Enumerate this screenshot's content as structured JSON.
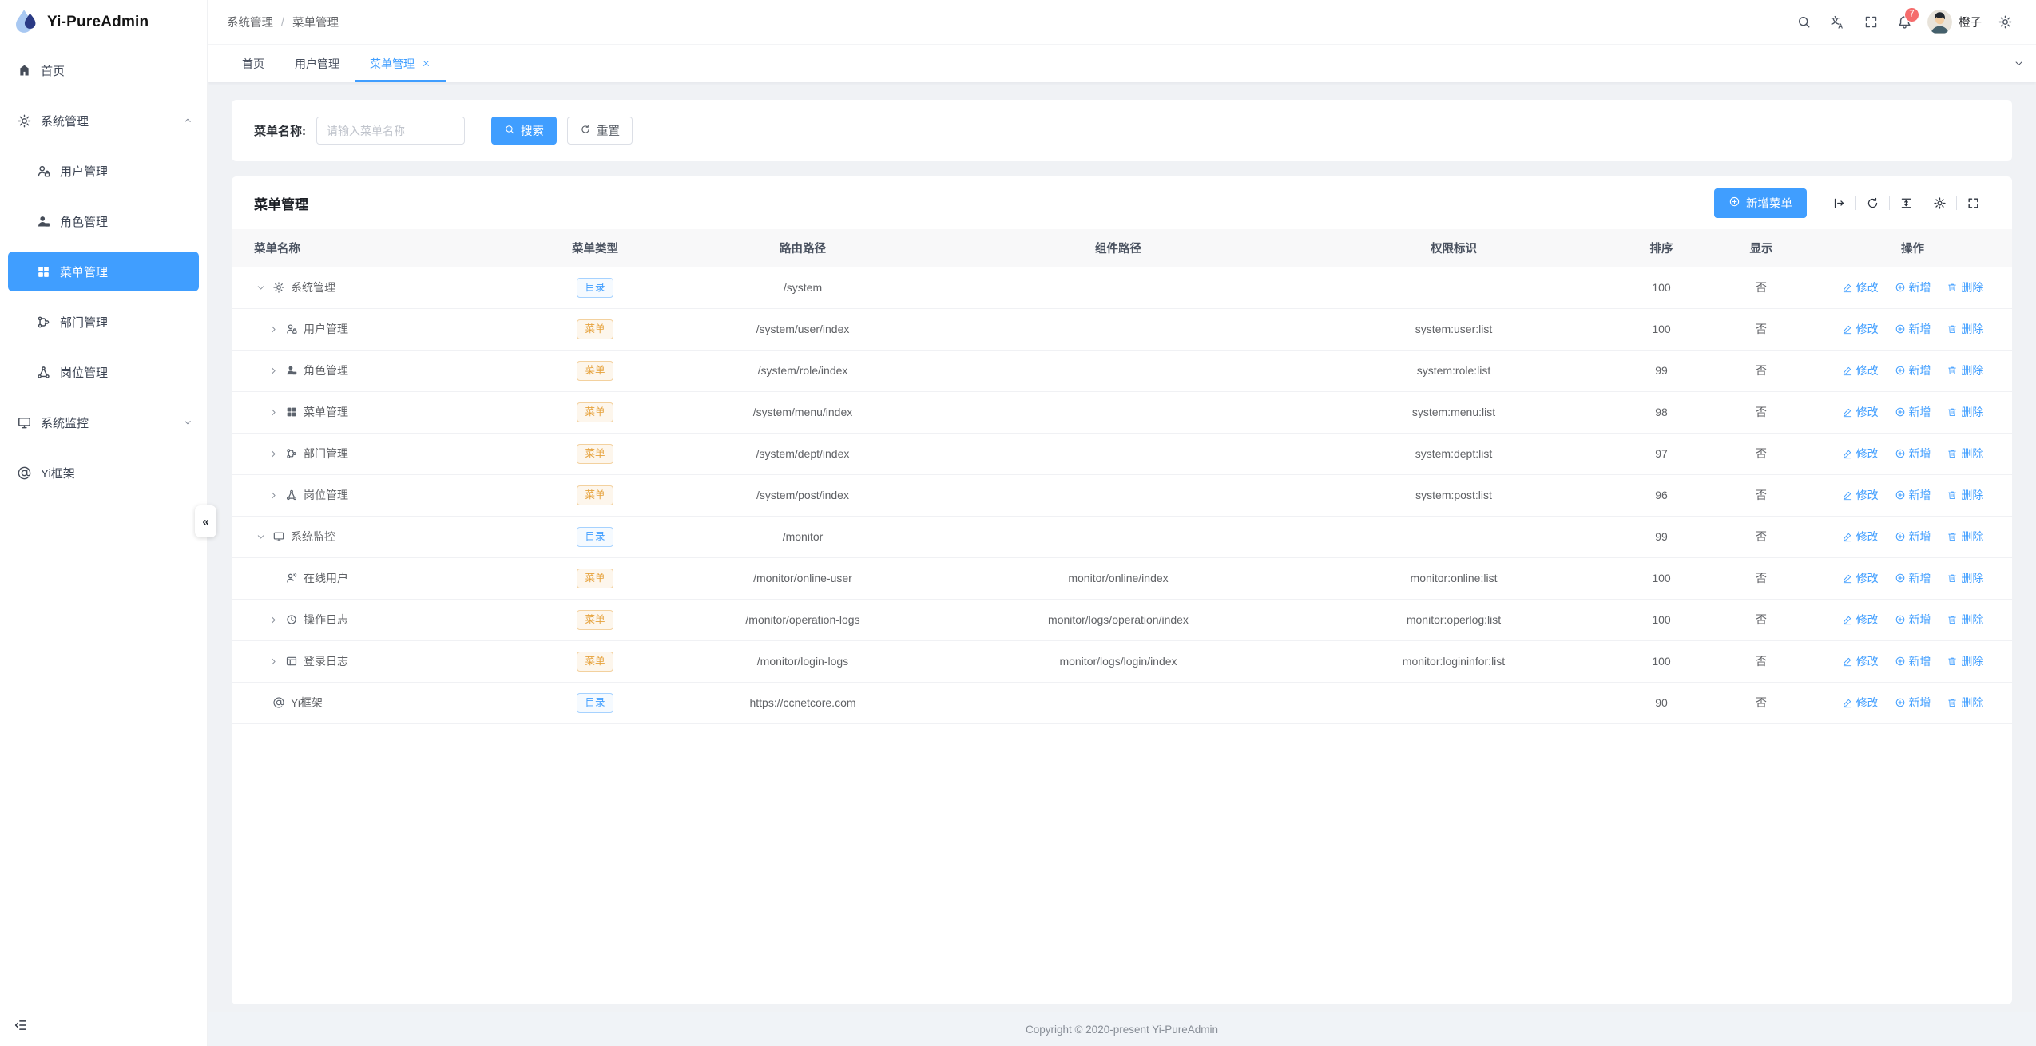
{
  "app": {
    "title": "Yi-PureAdmin"
  },
  "breadcrumb": {
    "items": [
      "系统管理",
      "菜单管理"
    ],
    "separator": "/"
  },
  "header": {
    "notification_count": "7",
    "username": "橙子",
    "icons": [
      "search-icon",
      "translate-icon",
      "fullscreen-icon",
      "bell-icon",
      "settings-icon"
    ]
  },
  "tabbar": {
    "tabs": [
      {
        "label": "首页",
        "active": false,
        "closable": false
      },
      {
        "label": "用户管理",
        "active": false,
        "closable": false
      },
      {
        "label": "菜单管理",
        "active": true,
        "closable": true
      }
    ]
  },
  "sidebar": {
    "collapse_glyph": "«",
    "items": [
      {
        "label": "首页",
        "icon": "home-icon"
      },
      {
        "label": "系统管理",
        "icon": "gear-icon",
        "expanded": true,
        "children": [
          {
            "label": "用户管理",
            "icon": "user-lock-icon"
          },
          {
            "label": "角色管理",
            "icon": "role-user-icon"
          },
          {
            "label": "菜单管理",
            "icon": "menu-grid-icon",
            "active": true
          },
          {
            "label": "部门管理",
            "icon": "dept-tree-icon"
          },
          {
            "label": "岗位管理",
            "icon": "post-nodes-icon"
          }
        ]
      },
      {
        "label": "系统监控",
        "icon": "monitor-icon",
        "expanded": false,
        "children": []
      },
      {
        "label": "Yi框架",
        "icon": "at-icon"
      }
    ]
  },
  "search_form": {
    "label": "菜单名称:",
    "placeholder": "请输入菜单名称",
    "search_button": "搜索",
    "reset_button": "重置"
  },
  "card": {
    "title": "菜单管理",
    "add_button": "新增菜单"
  },
  "table": {
    "columns": [
      "菜单名称",
      "菜单类型",
      "路由路径",
      "组件路径",
      "权限标识",
      "排序",
      "显示",
      "操作"
    ],
    "actions": {
      "edit": "修改",
      "add": "新增",
      "delete": "删除"
    },
    "toolbar_icons": [
      "collapse-all-icon",
      "refresh-icon",
      "density-icon",
      "column-settings-icon",
      "fullscreen-icon"
    ],
    "rows": [
      {
        "name": "系统管理",
        "icon": "gear-icon",
        "level": 0,
        "expand": "down",
        "type": "目录",
        "type_style": "blue",
        "route": "/system",
        "component": "",
        "permission": "",
        "sort": "100",
        "visible": "否"
      },
      {
        "name": "用户管理",
        "icon": "user-lock-icon",
        "level": 1,
        "expand": "right",
        "type": "菜单",
        "type_style": "orange",
        "route": "/system/user/index",
        "component": "",
        "permission": "system:user:list",
        "sort": "100",
        "visible": "否"
      },
      {
        "name": "角色管理",
        "icon": "role-user-icon",
        "level": 1,
        "expand": "right",
        "type": "菜单",
        "type_style": "orange",
        "route": "/system/role/index",
        "component": "",
        "permission": "system:role:list",
        "sort": "99",
        "visible": "否"
      },
      {
        "name": "菜单管理",
        "icon": "menu-grid-icon",
        "level": 1,
        "expand": "right",
        "type": "菜单",
        "type_style": "orange",
        "route": "/system/menu/index",
        "component": "",
        "permission": "system:menu:list",
        "sort": "98",
        "visible": "否"
      },
      {
        "name": "部门管理",
        "icon": "dept-tree-icon",
        "level": 1,
        "expand": "right",
        "type": "菜单",
        "type_style": "orange",
        "route": "/system/dept/index",
        "component": "",
        "permission": "system:dept:list",
        "sort": "97",
        "visible": "否"
      },
      {
        "name": "岗位管理",
        "icon": "post-nodes-icon",
        "level": 1,
        "expand": "right",
        "type": "菜单",
        "type_style": "orange",
        "route": "/system/post/index",
        "component": "",
        "permission": "system:post:list",
        "sort": "96",
        "visible": "否"
      },
      {
        "name": "系统监控",
        "icon": "monitor-icon",
        "level": 0,
        "expand": "down",
        "type": "目录",
        "type_style": "blue",
        "route": "/monitor",
        "component": "",
        "permission": "",
        "sort": "99",
        "visible": "否"
      },
      {
        "name": "在线用户",
        "icon": "online-user-icon",
        "level": 1,
        "expand": "none",
        "type": "菜单",
        "type_style": "orange",
        "route": "/monitor/online-user",
        "component": "monitor/online/index",
        "permission": "monitor:online:list",
        "sort": "100",
        "visible": "否"
      },
      {
        "name": "操作日志",
        "icon": "history-icon",
        "level": 1,
        "expand": "right",
        "type": "菜单",
        "type_style": "orange",
        "route": "/monitor/operation-logs",
        "component": "monitor/logs/operation/index",
        "permission": "monitor:operlog:list",
        "sort": "100",
        "visible": "否"
      },
      {
        "name": "登录日志",
        "icon": "login-log-icon",
        "level": 1,
        "expand": "right",
        "type": "菜单",
        "type_style": "orange",
        "route": "/monitor/login-logs",
        "component": "monitor/logs/login/index",
        "permission": "monitor:logininfor:list",
        "sort": "100",
        "visible": "否"
      },
      {
        "name": "Yi框架",
        "icon": "at-icon",
        "level": 0,
        "expand": "none",
        "type": "目录",
        "type_style": "blue",
        "route": "https://ccnetcore.com",
        "component": "",
        "permission": "",
        "sort": "90",
        "visible": "否"
      }
    ]
  },
  "footer": {
    "text": "Copyright © 2020-present Yi-PureAdmin"
  },
  "colors": {
    "primary": "#409eff",
    "tag_blue": "#409eff",
    "tag_orange": "#e6a23c",
    "badge": "#f56c6c"
  }
}
